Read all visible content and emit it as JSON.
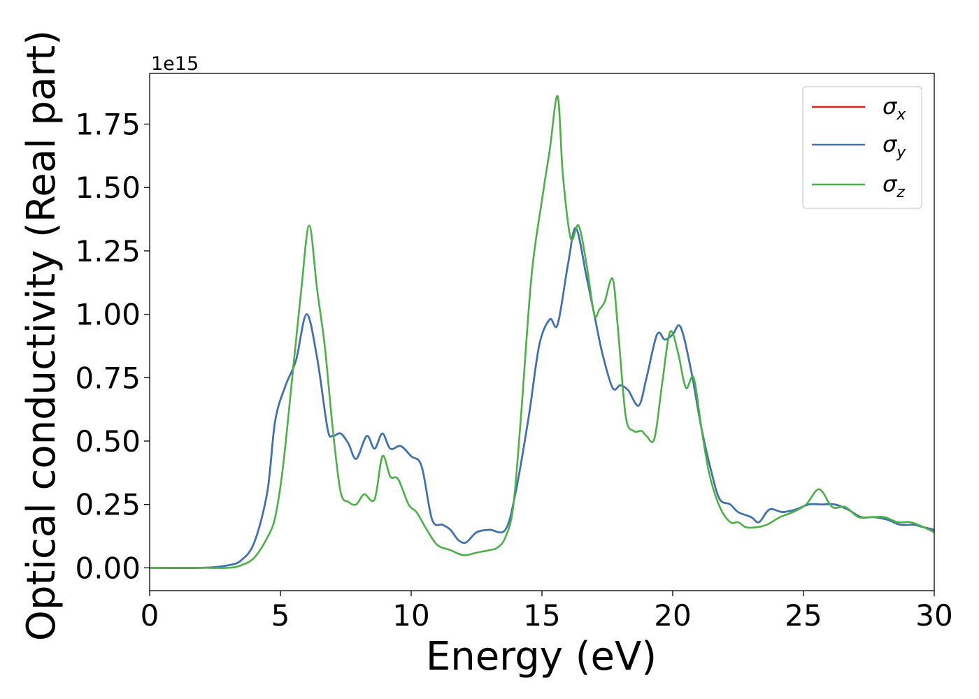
{
  "chart_data": {
    "type": "line",
    "xlabel": "Energy (eV)",
    "ylabel": "Optical conductivity (Real part)",
    "y_offset_label": "1e15",
    "xlim": [
      0,
      30
    ],
    "ylim": [
      -0.09,
      1.95
    ],
    "x_ticks": [
      0,
      5,
      10,
      15,
      20,
      25,
      30
    ],
    "x_tick_labels": [
      "0",
      "5",
      "10",
      "15",
      "20",
      "25",
      "30"
    ],
    "y_ticks": [
      0.0,
      0.25,
      0.5,
      0.75,
      1.0,
      1.25,
      1.5,
      1.75
    ],
    "y_tick_labels": [
      "0.00",
      "0.25",
      "0.50",
      "0.75",
      "1.00",
      "1.25",
      "1.50",
      "1.75"
    ],
    "grid": false,
    "legend_position": "upper-right",
    "series": [
      {
        "name": "σx",
        "symbol": "σ",
        "subscript": "x",
        "color": "#d62728",
        "x": [
          0,
          2,
          3,
          3.5,
          4,
          4.5,
          4.8,
          5.2,
          5.6,
          6.0,
          6.4,
          6.8,
          7.0,
          7.3,
          7.6,
          7.9,
          8.3,
          8.6,
          8.9,
          9.2,
          9.6,
          10.0,
          10.4,
          10.8,
          11.2,
          11.5,
          11.8,
          12.1,
          12.5,
          13.0,
          13.6,
          14.0,
          14.5,
          14.9,
          15.3,
          15.6,
          16.0,
          16.3,
          16.7,
          17.0,
          17.3,
          17.7,
          18.0,
          18.3,
          18.7,
          19.0,
          19.4,
          19.7,
          20.0,
          20.3,
          20.7,
          21.1,
          21.5,
          21.8,
          22.2,
          22.5,
          23.0,
          23.3,
          23.7,
          24.2,
          24.7,
          25.2,
          25.7,
          26.2,
          26.7,
          27.2,
          27.7,
          28.2,
          28.7,
          29.2,
          29.6,
          30
        ],
        "values": [
          0.0,
          0.0,
          0.01,
          0.03,
          0.1,
          0.3,
          0.58,
          0.72,
          0.82,
          1.0,
          0.83,
          0.55,
          0.52,
          0.53,
          0.49,
          0.43,
          0.52,
          0.47,
          0.53,
          0.47,
          0.48,
          0.44,
          0.4,
          0.19,
          0.17,
          0.15,
          0.11,
          0.1,
          0.14,
          0.15,
          0.15,
          0.3,
          0.6,
          0.88,
          0.98,
          0.96,
          1.2,
          1.34,
          1.15,
          1.0,
          0.85,
          0.71,
          0.72,
          0.7,
          0.64,
          0.75,
          0.92,
          0.9,
          0.92,
          0.95,
          0.78,
          0.55,
          0.37,
          0.27,
          0.25,
          0.22,
          0.2,
          0.18,
          0.23,
          0.22,
          0.23,
          0.25,
          0.25,
          0.25,
          0.23,
          0.2,
          0.2,
          0.19,
          0.17,
          0.17,
          0.16,
          0.15
        ]
      },
      {
        "name": "σy",
        "symbol": "σ",
        "subscript": "y",
        "color": "#3a75b0",
        "x": [
          0,
          2,
          3,
          3.5,
          4,
          4.5,
          4.8,
          5.2,
          5.6,
          6.0,
          6.4,
          6.8,
          7.0,
          7.3,
          7.6,
          7.9,
          8.3,
          8.6,
          8.9,
          9.2,
          9.6,
          10.0,
          10.4,
          10.8,
          11.2,
          11.5,
          11.8,
          12.1,
          12.5,
          13.0,
          13.6,
          14.0,
          14.5,
          14.9,
          15.3,
          15.6,
          16.0,
          16.3,
          16.7,
          17.0,
          17.3,
          17.7,
          18.0,
          18.3,
          18.7,
          19.0,
          19.4,
          19.7,
          20.0,
          20.3,
          20.7,
          21.1,
          21.5,
          21.8,
          22.2,
          22.5,
          23.0,
          23.3,
          23.7,
          24.2,
          24.7,
          25.2,
          25.7,
          26.2,
          26.7,
          27.2,
          27.7,
          28.2,
          28.7,
          29.2,
          29.6,
          30
        ],
        "values": [
          0.0,
          0.0,
          0.01,
          0.03,
          0.1,
          0.3,
          0.58,
          0.72,
          0.82,
          1.0,
          0.83,
          0.55,
          0.52,
          0.53,
          0.49,
          0.43,
          0.52,
          0.47,
          0.53,
          0.47,
          0.48,
          0.44,
          0.4,
          0.19,
          0.17,
          0.15,
          0.11,
          0.1,
          0.14,
          0.15,
          0.15,
          0.3,
          0.6,
          0.88,
          0.98,
          0.96,
          1.2,
          1.34,
          1.15,
          1.0,
          0.85,
          0.71,
          0.72,
          0.7,
          0.64,
          0.75,
          0.92,
          0.9,
          0.92,
          0.95,
          0.78,
          0.55,
          0.37,
          0.27,
          0.25,
          0.22,
          0.2,
          0.18,
          0.23,
          0.22,
          0.23,
          0.25,
          0.25,
          0.25,
          0.23,
          0.2,
          0.2,
          0.19,
          0.17,
          0.17,
          0.16,
          0.15
        ]
      },
      {
        "name": "σz",
        "symbol": "σ",
        "subscript": "z",
        "color": "#4daf4a",
        "x": [
          0,
          2,
          3,
          3.5,
          4,
          4.5,
          4.8,
          5.1,
          5.5,
          5.8,
          6.1,
          6.4,
          6.7,
          7.0,
          7.3,
          7.6,
          7.9,
          8.2,
          8.6,
          8.9,
          9.2,
          9.5,
          9.9,
          10.2,
          10.6,
          11.0,
          11.5,
          12.0,
          12.5,
          13.0,
          13.3,
          13.6,
          13.9,
          14.2,
          14.6,
          15.0,
          15.3,
          15.6,
          15.8,
          16.1,
          16.4,
          16.7,
          17.0,
          17.2,
          17.4,
          17.7,
          17.9,
          18.2,
          18.5,
          18.8,
          19.0,
          19.3,
          19.6,
          19.9,
          20.2,
          20.5,
          20.8,
          21.1,
          21.4,
          21.8,
          22.2,
          22.5,
          22.8,
          23.2,
          23.6,
          24.1,
          24.6,
          25.1,
          25.6,
          26.1,
          26.6,
          27.1,
          27.6,
          28.1,
          28.6,
          29.1,
          29.6,
          30
        ],
        "values": [
          0.0,
          0.0,
          0.0,
          0.01,
          0.04,
          0.12,
          0.2,
          0.4,
          0.8,
          1.1,
          1.35,
          1.1,
          0.87,
          0.55,
          0.3,
          0.26,
          0.25,
          0.29,
          0.27,
          0.44,
          0.36,
          0.35,
          0.25,
          0.22,
          0.15,
          0.09,
          0.07,
          0.05,
          0.06,
          0.07,
          0.08,
          0.12,
          0.24,
          0.6,
          1.15,
          1.45,
          1.65,
          1.86,
          1.55,
          1.3,
          1.35,
          1.2,
          1.0,
          1.02,
          1.05,
          1.14,
          0.95,
          0.6,
          0.54,
          0.54,
          0.52,
          0.51,
          0.73,
          0.93,
          0.85,
          0.71,
          0.75,
          0.55,
          0.37,
          0.24,
          0.18,
          0.18,
          0.16,
          0.16,
          0.17,
          0.2,
          0.22,
          0.25,
          0.31,
          0.24,
          0.24,
          0.2,
          0.2,
          0.2,
          0.18,
          0.18,
          0.16,
          0.14
        ]
      }
    ]
  }
}
